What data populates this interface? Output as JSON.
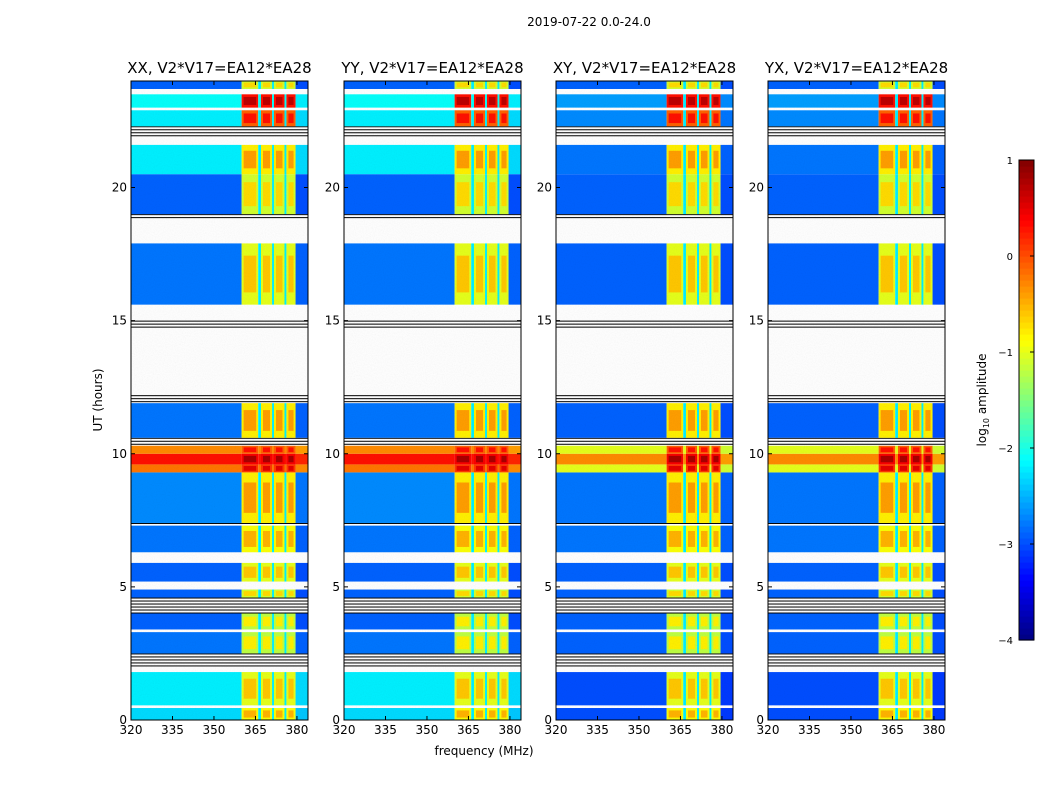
{
  "chart_data": {
    "type": "heatmap",
    "title": "2019-07-22 0.0-24.0",
    "xlabel": "frequency (MHz)",
    "ylabel": "UT (hours)",
    "xlim": [
      320,
      384
    ],
    "ylim": [
      0,
      24
    ],
    "xticks": [
      320,
      335,
      350,
      365,
      380
    ],
    "yticks": [
      0,
      5,
      10,
      15,
      20
    ],
    "panels": [
      {
        "title": "XX, V2*V17=EA12*EA28",
        "cross": false
      },
      {
        "title": "YY, V2*V17=EA12*EA28",
        "cross": false
      },
      {
        "title": "XY, V2*V17=EA12*EA28",
        "cross": true
      },
      {
        "title": "YX, V2*V17=EA12*EA28",
        "cross": true
      }
    ],
    "rfi_channels_mhz": [
      [
        360,
        366
      ],
      [
        367,
        371
      ],
      [
        371.7,
        375.5
      ],
      [
        376.2,
        379.5
      ]
    ],
    "bands": [
      {
        "t": [
          0.0,
          0.45
        ],
        "kind": "data",
        "cont": -2.3,
        "cross": -3.0,
        "rfi": -0.5
      },
      {
        "t": [
          0.45,
          0.55
        ],
        "kind": "flag"
      },
      {
        "t": [
          0.55,
          1.8
        ],
        "kind": "data",
        "cont": -2.2,
        "cross": -3.0,
        "rfi": -0.6
      },
      {
        "t": [
          1.8,
          2.0
        ],
        "kind": "flag"
      },
      {
        "t": [
          2.0,
          2.5
        ],
        "kind": "lines"
      },
      {
        "t": [
          2.5,
          3.3
        ],
        "kind": "data",
        "cont": -2.8,
        "cross": -2.9,
        "rfi": -0.8
      },
      {
        "t": [
          3.3,
          3.4
        ],
        "kind": "flag"
      },
      {
        "t": [
          3.4,
          4.0
        ],
        "kind": "data",
        "cont": -2.9,
        "cross": -2.9,
        "rfi": -0.8
      },
      {
        "t": [
          4.0,
          4.6
        ],
        "kind": "lines"
      },
      {
        "t": [
          4.6,
          4.9
        ],
        "kind": "data",
        "cont": -2.9,
        "cross": -2.9,
        "rfi": -0.7
      },
      {
        "t": [
          4.9,
          5.2
        ],
        "kind": "flag"
      },
      {
        "t": [
          5.2,
          5.9
        ],
        "kind": "data",
        "cont": -2.9,
        "cross": -2.9,
        "rfi": -0.6
      },
      {
        "t": [
          5.9,
          6.3
        ],
        "kind": "flag"
      },
      {
        "t": [
          6.3,
          7.3
        ],
        "kind": "data",
        "cont": -2.8,
        "cross": -2.8,
        "rfi": -0.5
      },
      {
        "t": [
          7.3,
          7.4
        ],
        "kind": "lines"
      },
      {
        "t": [
          7.4,
          9.3
        ],
        "kind": "data",
        "cont": -2.7,
        "cross": -2.8,
        "rfi": -0.4
      },
      {
        "t": [
          9.3,
          9.6
        ],
        "kind": "data",
        "cont": -0.2,
        "cross": -1.0,
        "rfi": 0.5
      },
      {
        "t": [
          9.6,
          10.0
        ],
        "kind": "data",
        "cont": 0.3,
        "cross": -0.3,
        "rfi": 0.8
      },
      {
        "t": [
          10.0,
          10.3
        ],
        "kind": "data",
        "cont": -0.3,
        "cross": -1.0,
        "rfi": 0.3
      },
      {
        "t": [
          10.3,
          10.6
        ],
        "kind": "lines"
      },
      {
        "t": [
          10.6,
          11.9
        ],
        "kind": "data",
        "cont": -2.8,
        "cross": -2.9,
        "rfi": -0.4
      },
      {
        "t": [
          11.9,
          12.2
        ],
        "kind": "lines"
      },
      {
        "t": [
          12.2,
          14.7
        ],
        "kind": "flag"
      },
      {
        "t": [
          14.7,
          15.0
        ],
        "kind": "lines"
      },
      {
        "t": [
          15.0,
          15.6
        ],
        "kind": "flag"
      },
      {
        "t": [
          15.6,
          17.9
        ],
        "kind": "data",
        "cont": -2.8,
        "cross": -2.9,
        "rfi": -0.6
      },
      {
        "t": [
          17.9,
          18.8
        ],
        "kind": "flag"
      },
      {
        "t": [
          18.8,
          19.0
        ],
        "kind": "lines"
      },
      {
        "t": [
          19.0,
          20.5
        ],
        "kind": "data",
        "cont": -2.9,
        "cross": -2.9,
        "rfi": -0.7
      },
      {
        "t": [
          20.5,
          21.6
        ],
        "kind": "data",
        "cont": -2.2,
        "cross": -2.8,
        "rfi": -0.4
      },
      {
        "t": [
          21.6,
          21.9
        ],
        "kind": "flag"
      },
      {
        "t": [
          21.9,
          22.3
        ],
        "kind": "lines"
      },
      {
        "t": [
          22.3,
          22.9
        ],
        "kind": "data",
        "cont": -2.2,
        "cross": -2.7,
        "rfi": 0.3
      },
      {
        "t": [
          22.9,
          23.0
        ],
        "kind": "flag"
      },
      {
        "t": [
          23.0,
          23.5
        ],
        "kind": "data",
        "cont": -2.1,
        "cross": -2.6,
        "rfi": 0.7
      },
      {
        "t": [
          23.5,
          23.7
        ],
        "kind": "flag"
      },
      {
        "t": [
          23.7,
          24.0
        ],
        "kind": "data",
        "cont": -2.9,
        "cross": -2.9,
        "rfi": -0.7
      }
    ],
    "colorbar": {
      "label_prefix": "log",
      "label_sub": "10",
      "label_suffix": " amplitude",
      "range": [
        -4,
        1
      ],
      "ticks": [
        1,
        0,
        -1,
        -2,
        -3,
        -4
      ],
      "tick_labels": [
        "1",
        "0",
        "−1",
        "−2",
        "−3",
        "−4"
      ],
      "colormap": "jet"
    }
  }
}
